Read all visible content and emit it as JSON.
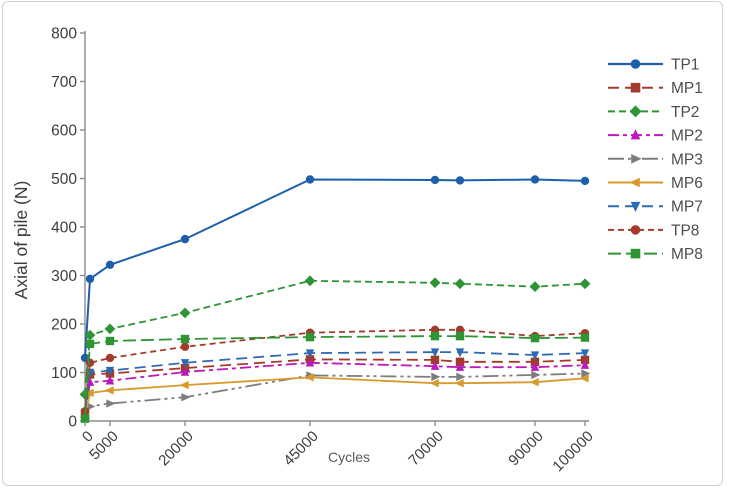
{
  "frame": {
    "background": "#ffffff",
    "border_color": "#ccd2d9"
  },
  "axis": {
    "line_color": "#8c8c8c",
    "tick_label_color": "#3d3d3d",
    "xlabel_color": "#595959",
    "legend_text_color": "#4d4d4d"
  },
  "chart_data": {
    "type": "line",
    "title": "",
    "xlabel": "Cycles",
    "ylabel": "Axial of pile (N)",
    "xlim": [
      0,
      100000
    ],
    "ylim": [
      0,
      800
    ],
    "xticks": [
      0,
      5000,
      20000,
      45000,
      70000,
      90000,
      100000
    ],
    "yticks": [
      0,
      100,
      200,
      300,
      400,
      500,
      600,
      700,
      800
    ],
    "grid": false,
    "legend_position": "right",
    "x": [
      0,
      1000,
      5000,
      20000,
      45000,
      70000,
      75000,
      90000,
      100000
    ],
    "series": [
      {
        "name": "TP1",
        "color": "#1e5fab",
        "marker": "circle",
        "line_style": "solid",
        "dash": "",
        "width": 2,
        "values": [
          130,
          293,
          322,
          375,
          498,
          497,
          496,
          498,
          495
        ]
      },
      {
        "name": "MP1",
        "color": "#a33b2b",
        "marker": "square",
        "line_style": "dashed",
        "dash": "11 6",
        "width": 1.8,
        "values": [
          15,
          96,
          98,
          109,
          127,
          126,
          122,
          122,
          126
        ]
      },
      {
        "name": "TP2",
        "color": "#2e9434",
        "marker": "diamond",
        "line_style": "dashed",
        "dash": "7 4",
        "width": 1.8,
        "values": [
          55,
          177,
          190,
          223,
          289,
          285,
          283,
          277,
          283
        ]
      },
      {
        "name": "MP2",
        "color": "#bc1abc",
        "marker": "triangle-up",
        "line_style": "dash-dot",
        "dash": "11 4 4 4",
        "width": 1.8,
        "values": [
          12,
          80,
          83,
          101,
          120,
          113,
          111,
          111,
          115
        ]
      },
      {
        "name": "MP3",
        "color": "#7d7d7d",
        "marker": "triangle-right",
        "line_style": "dash-dot-dot",
        "dash": "16 4 3 4 3 4",
        "width": 1.8,
        "values": [
          5,
          30,
          36,
          49,
          94,
          91,
          91,
          95,
          98
        ]
      },
      {
        "name": "MP6",
        "color": "#d9992d",
        "marker": "triangle-left",
        "line_style": "solid",
        "dash": "",
        "width": 1.8,
        "values": [
          8,
          58,
          63,
          74,
          90,
          78,
          78,
          80,
          88
        ]
      },
      {
        "name": "MP7",
        "color": "#2d6cb5",
        "marker": "triangle-down",
        "line_style": "dashed",
        "dash": "11 6",
        "width": 1.8,
        "values": [
          18,
          100,
          104,
          120,
          140,
          142,
          142,
          136,
          140
        ]
      },
      {
        "name": "TP8",
        "color": "#a33b2b",
        "marker": "circle",
        "line_style": "short-dash",
        "dash": "6 4",
        "width": 1.8,
        "values": [
          20,
          120,
          130,
          153,
          182,
          188,
          188,
          175,
          181
        ]
      },
      {
        "name": "MP8",
        "color": "#2e9434",
        "marker": "square",
        "line_style": "long-dash",
        "dash": "13 5",
        "width": 1.8,
        "values": [
          5,
          159,
          165,
          169,
          173,
          175,
          175,
          171,
          172
        ]
      }
    ]
  }
}
